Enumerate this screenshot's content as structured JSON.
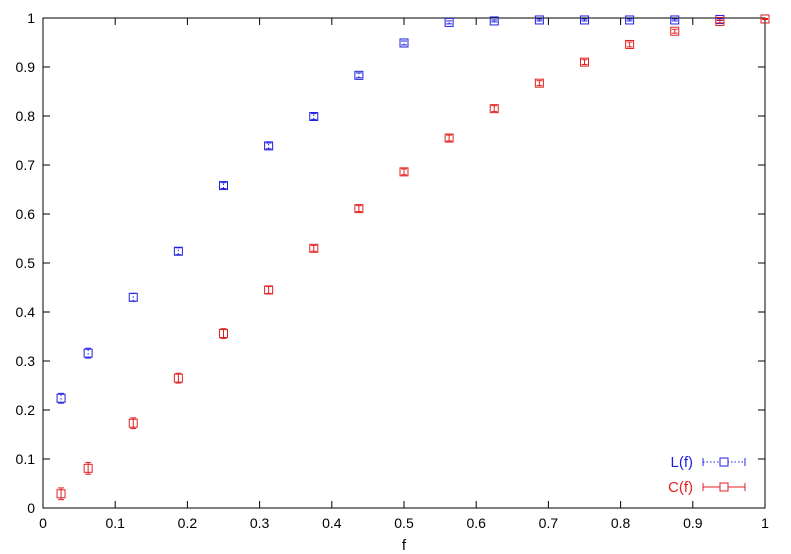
{
  "chart_data": {
    "type": "scatter",
    "title": "",
    "xlabel": "f",
    "ylabel": "",
    "xlim": [
      0,
      1
    ],
    "ylim": [
      0,
      1
    ],
    "xticks": [
      "0",
      "0.1",
      "0.2",
      "0.3",
      "0.4",
      "0.5",
      "0.6",
      "0.7",
      "0.8",
      "0.9",
      "1"
    ],
    "yticks": [
      "0",
      "0.1",
      "0.2",
      "0.3",
      "0.4",
      "0.5",
      "0.6",
      "0.7",
      "0.8",
      "0.9",
      "1"
    ],
    "grid": false,
    "legend_position": "bottom-right",
    "series": [
      {
        "name": "L(f)",
        "color": "#2020e0",
        "line_style": "dotted",
        "marker": "open-square",
        "x": [
          0.025,
          0.0625,
          0.125,
          0.1875,
          0.25,
          0.3125,
          0.375,
          0.4375,
          0.5,
          0.5625,
          0.625,
          0.6875,
          0.75,
          0.8125,
          0.875,
          0.9375,
          1.0
        ],
        "y": [
          0.224,
          0.316,
          0.43,
          0.524,
          0.658,
          0.739,
          0.799,
          0.883,
          0.949,
          0.991,
          0.994,
          0.996,
          0.996,
          0.996,
          0.996,
          0.997,
          0.998
        ],
        "err": [
          0.01,
          0.01,
          0.008,
          0.007,
          0.006,
          0.006,
          0.006,
          0.005,
          0.004,
          0.003,
          0.002,
          0.002,
          0.002,
          0.002,
          0.002,
          0.002,
          0.001
        ]
      },
      {
        "name": "C(f)",
        "color": "#e02020",
        "line_style": "solid",
        "marker": "open-square",
        "x": [
          0.025,
          0.0625,
          0.125,
          0.1875,
          0.25,
          0.3125,
          0.375,
          0.4375,
          0.5,
          0.5625,
          0.625,
          0.6875,
          0.75,
          0.8125,
          0.875,
          0.9375,
          1.0
        ],
        "y": [
          0.029,
          0.081,
          0.173,
          0.265,
          0.356,
          0.445,
          0.53,
          0.611,
          0.686,
          0.755,
          0.815,
          0.867,
          0.91,
          0.946,
          0.973,
          0.993,
          0.998
        ],
        "err": [
          0.012,
          0.012,
          0.011,
          0.01,
          0.01,
          0.007,
          0.006,
          0.006,
          0.006,
          0.006,
          0.006,
          0.005,
          0.005,
          0.005,
          0.004,
          0.003,
          0.001
        ]
      }
    ]
  }
}
